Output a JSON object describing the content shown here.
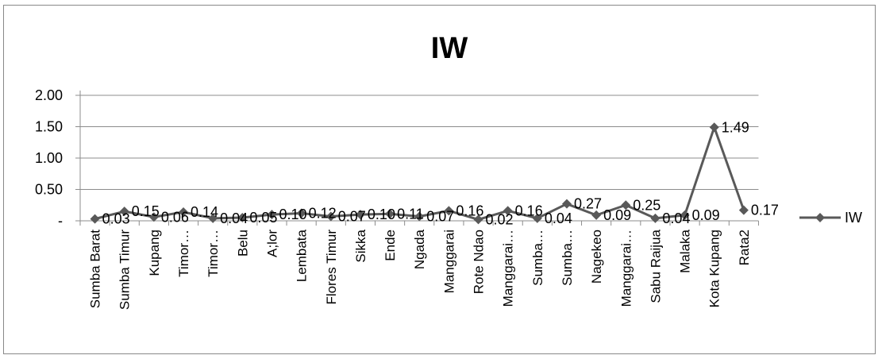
{
  "chart_data": {
    "type": "line",
    "title": "IW",
    "categories": [
      "Sumba  Barat",
      "Sumba Timur",
      "Kupang",
      "Timor…",
      "Timor…",
      "Belu",
      "A;lor",
      "Lembata",
      "Flores Timur",
      "Sikka",
      "Ende",
      "Ngada",
      "Manggarai",
      "Rote Ndao",
      "Manggarai…",
      "Sumba…",
      "Sumba…",
      "Nagekeo",
      "Manggarai…",
      "Sabu Raijua",
      "Malaka",
      "Kota  Kupang",
      "Rata2"
    ],
    "series": [
      {
        "name": "IW",
        "values": [
          0.03,
          0.15,
          0.06,
          0.14,
          0.04,
          0.05,
          0.1,
          0.12,
          0.07,
          0.1,
          0.11,
          0.07,
          0.16,
          0.02,
          0.16,
          0.04,
          0.27,
          0.09,
          0.25,
          0.04,
          0.09,
          1.49,
          0.17
        ],
        "labels": [
          "0.03",
          "0.15",
          "0.06",
          "0.14",
          "0.04",
          "0.05",
          "0.10",
          "0.12",
          "0.07",
          "0.10",
          "0.11",
          "0.07",
          "0.16",
          "0.02",
          "0.16",
          "0.04",
          "0.27",
          "0.09",
          "0.25",
          "0.04",
          "0.09",
          "1.49",
          "0.17"
        ],
        "color": "#595959"
      }
    ],
    "y_ticks": [
      "-",
      "0.50",
      "1.00",
      "1.50",
      "2.00"
    ],
    "y_tick_values": [
      0,
      0.5,
      1.0,
      1.5,
      2.0
    ],
    "ylim": [
      0,
      2.0
    ],
    "grid": true,
    "legend_position": "right",
    "xlabel": "",
    "ylabel": ""
  }
}
